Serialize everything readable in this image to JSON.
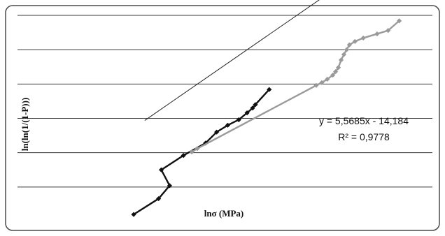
{
  "chart_data": {
    "type": "scatter",
    "xlabel": "lnσ (MPa)",
    "ylabel": "ln(ln(1/(1-P)))",
    "xlim": [
      2.15,
      2.9
    ],
    "ylim": [
      -2.4,
      0.6
    ],
    "grid": true,
    "series": [
      {
        "x": [
          2.36,
          2.405,
          2.425,
          2.41,
          2.45,
          2.49,
          2.51,
          2.53,
          2.55,
          2.565,
          2.575,
          2.58,
          2.605
        ],
        "y": [
          -2.3,
          -2.07,
          -1.88,
          -1.65,
          -1.44,
          -1.26,
          -1.1,
          -1.0,
          -0.92,
          -0.82,
          -0.75,
          -0.7,
          -0.48
        ],
        "color": "#111111"
      },
      {
        "x": [
          2.465,
          2.475,
          2.69,
          2.7,
          2.71,
          2.72,
          2.725,
          2.73,
          2.735,
          2.74,
          2.745,
          2.75,
          2.76,
          2.775,
          2.8,
          2.82,
          2.84
        ],
        "y": [
          -1.39,
          -1.34,
          -0.42,
          -0.38,
          -0.33,
          -0.27,
          -0.22,
          -0.16,
          -0.05,
          0.03,
          0.1,
          0.17,
          0.22,
          0.27,
          0.33,
          0.38,
          0.52
        ],
        "color": "#9a9a9a"
      }
    ],
    "trendline": {
      "slope": 5.5685,
      "intercept": -14.184,
      "x_range": [
        2.38,
        2.83
      ]
    },
    "annotations": [
      "y = 5,5685x - 14,184",
      "R² = 0,9778"
    ]
  }
}
